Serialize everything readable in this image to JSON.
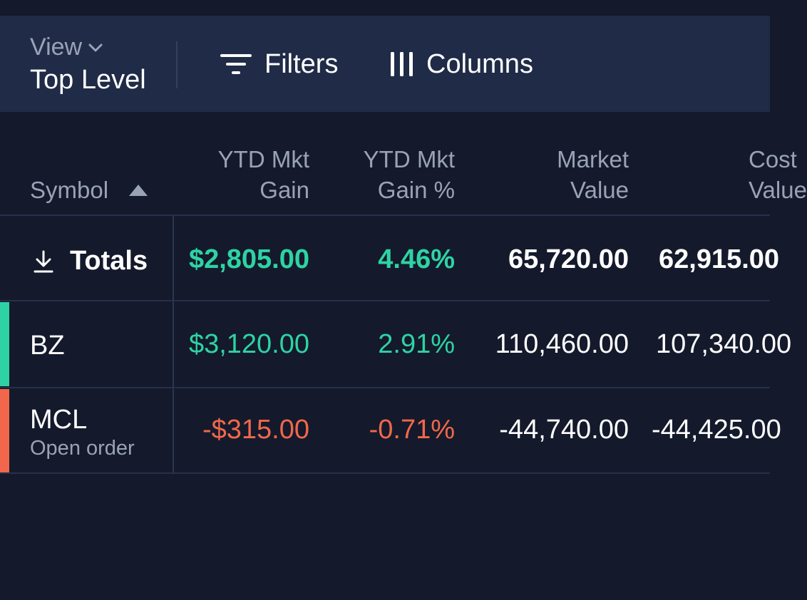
{
  "toolbar": {
    "view_label": "View",
    "view_value": "Top Level",
    "filters_label": "Filters",
    "columns_label": "Columns"
  },
  "headers": {
    "symbol": "Symbol",
    "ytd_mkt_gain_line1": "YTD Mkt",
    "ytd_mkt_gain_line2": "Gain",
    "ytd_mkt_gain_pct_line1": "YTD Mkt",
    "ytd_mkt_gain_pct_line2": "Gain %",
    "market_value_line1": "Market",
    "market_value_line2": "Value",
    "cost_value_line1": "Cost",
    "cost_value_line2": "Value"
  },
  "totals": {
    "label": "Totals",
    "ytd_mkt_gain": "$2,805.00",
    "ytd_mkt_gain_pct": "4.46%",
    "market_value": "65,720.00",
    "cost_value": "62,915.00"
  },
  "rows": [
    {
      "symbol": "BZ",
      "subtitle": "",
      "ytd_mkt_gain": "$3,120.00",
      "ytd_mkt_gain_pct": "2.91%",
      "market_value": "110,460.00",
      "cost_value": "107,340.00",
      "accent_color": "#2ed3a4"
    },
    {
      "symbol": "MCL",
      "subtitle": "Open order",
      "ytd_mkt_gain": "-$315.00",
      "ytd_mkt_gain_pct": "-0.71%",
      "market_value": "-44,740.00",
      "cost_value": "-44,425.00",
      "accent_color": "#f2674b"
    }
  ],
  "colors": {
    "background": "#141a2b",
    "toolbar": "#1f2b47",
    "positive": "#2ed3a4",
    "negative": "#f2674b",
    "muted_text": "#9aa3b5"
  }
}
